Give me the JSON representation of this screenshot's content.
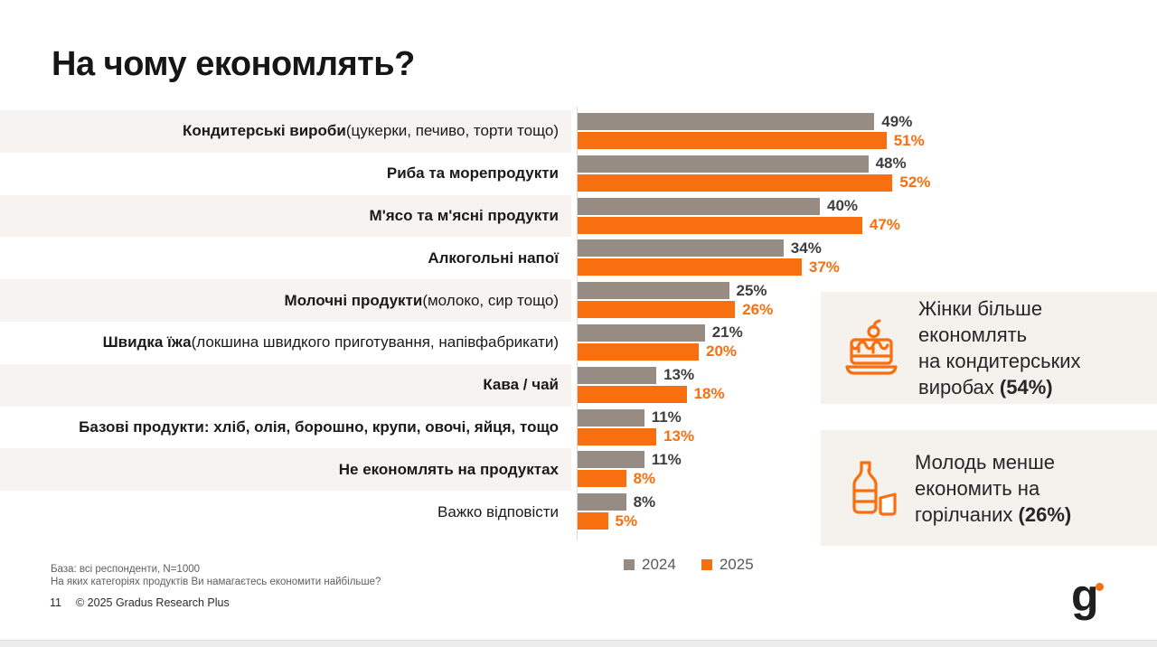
{
  "slide": {
    "title": "На чому економлять?",
    "page_number": "11",
    "copyright": "© 2025 Gradus Research Plus",
    "base_note": "База: всі респонденти, N=1000",
    "question_note": "На яких категоріях продуктів Ви намагаєтесь економити найбільше?",
    "logo_text": "g"
  },
  "colors": {
    "orange": "#F86F0F",
    "gray": "#978C84",
    "row_alt_bg": "#F7F3F0",
    "callout_bg": "#F5F1ED",
    "value_label_gray": "#3E3E3E"
  },
  "chart_data": {
    "type": "bar",
    "orientation": "horizontal",
    "title": "На чому економлять?",
    "value_suffix": "%",
    "data_labels": true,
    "grid": false,
    "legend_position": "bottom",
    "xlim": [
      0,
      55
    ],
    "categories": [
      {
        "label_bold": "Кондитерські вироби",
        "label_rest": " (цукерки, печиво, торти тощо)"
      },
      {
        "label_bold": "Риба та морепродукти",
        "label_rest": ""
      },
      {
        "label_bold": "М'ясо та м'ясні продукти",
        "label_rest": ""
      },
      {
        "label_bold": "Алкогольні напої",
        "label_rest": ""
      },
      {
        "label_bold": "Молочні продукти",
        "label_rest": " (молоко, сир тощо)"
      },
      {
        "label_bold": "Швидка їжа",
        "label_rest": " (локшина швидкого приготування, напівфабрикати)"
      },
      {
        "label_bold": "Кава / чай",
        "label_rest": ""
      },
      {
        "label_bold": "Базові продукти: хліб, олія, борошно, крупи, овочі, яйця, тощо",
        "label_rest": ""
      },
      {
        "label_bold": "Не економлять на продуктах",
        "label_rest": ""
      },
      {
        "label_bold": "",
        "label_rest": "Важко відповісти"
      }
    ],
    "series": [
      {
        "name": "2024",
        "color": "#978C84",
        "values": [
          49,
          48,
          40,
          34,
          25,
          21,
          13,
          11,
          11,
          8
        ]
      },
      {
        "name": "2025",
        "color": "#F86F0F",
        "values": [
          51,
          52,
          47,
          37,
          26,
          20,
          18,
          13,
          8,
          5
        ]
      }
    ]
  },
  "legend": [
    {
      "label": "2024",
      "color": "#978C84"
    },
    {
      "label": "2025",
      "color": "#F86F0F"
    }
  ],
  "callouts": [
    {
      "icon": "cake-icon",
      "lines": [
        "Жінки більше економлять",
        "на кондитерських",
        "виробах"
      ],
      "highlight": "(54%)"
    },
    {
      "icon": "bottle-glass-icon",
      "lines": [
        "Молодь менше",
        "економить на",
        "горілчаних"
      ],
      "highlight": "(26%)"
    }
  ]
}
